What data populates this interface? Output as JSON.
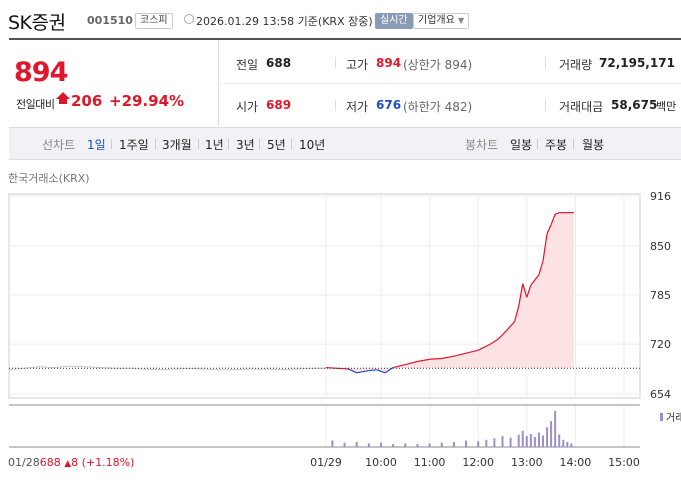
{
  "header": {
    "title": "SK증권",
    "code": "001510",
    "market": "코스피",
    "datetime": "2026.01.29 13:58 기준(KRX 장중)",
    "realtime": "실시간",
    "company_overview": "기업개요"
  },
  "price": {
    "current": "894",
    "change_label": "전일대비",
    "change_value": "206",
    "change_pct": "+29.94%"
  },
  "stats": {
    "prev_close_label": "전일",
    "prev_close": "688",
    "high_label": "고가",
    "high": "894",
    "upper_limit": "(상한가 894)",
    "volume_label": "거래량",
    "volume": "72,195,171",
    "open_label": "시가",
    "open": "689",
    "low_label": "저가",
    "low": "676",
    "lower_limit": "(하한가 482)",
    "amount_label": "거래대금",
    "amount": "58,675",
    "amount_unit": "백만"
  },
  "tabs": {
    "line_label": "선차트",
    "line_periods": [
      "1일",
      "1주일",
      "3개월",
      "1년",
      "3년",
      "5년",
      "10년"
    ],
    "candle_label": "봉차트",
    "candle_periods": [
      "일봉",
      "주봉",
      "월봉"
    ]
  },
  "exchange_label": "한국거래소(KRX)",
  "volume_legend": "거래",
  "prev_day_summary": {
    "date": "01/28",
    "price": "688",
    "change": "8",
    "pct": "(+1.18%)"
  },
  "colors": {
    "up": "#e0162b",
    "down": "#1a4ec9",
    "prev_line": "#c8c8c8",
    "area_fill": "#fde2e4",
    "volume_bar": "#9a8fc6"
  },
  "chart_data": {
    "type": "line",
    "y_ticks": [
      "916",
      "850",
      "785",
      "720",
      "654"
    ],
    "ylim": [
      654,
      916
    ],
    "x_ticks": [
      "01/29",
      "10:00",
      "11:00",
      "12:00",
      "13:00",
      "14:00",
      "15:00"
    ],
    "base_price": 688,
    "prev_day_series": [
      686,
      688,
      690,
      689,
      691,
      690,
      689,
      688,
      688,
      687,
      686,
      687,
      688,
      687,
      686,
      686,
      687,
      687,
      686,
      687,
      688,
      688
    ],
    "today_series": [
      {
        "time": "09:00",
        "price": 689
      },
      {
        "time": "09:20",
        "price": 687
      },
      {
        "time": "09:30",
        "price": 682
      },
      {
        "time": "09:45",
        "price": 685
      },
      {
        "time": "09:55",
        "price": 686
      },
      {
        "time": "10:05",
        "price": 682
      },
      {
        "time": "10:15",
        "price": 689
      },
      {
        "time": "10:30",
        "price": 693
      },
      {
        "time": "10:45",
        "price": 697
      },
      {
        "time": "11:00",
        "price": 700
      },
      {
        "time": "11:15",
        "price": 701
      },
      {
        "time": "11:30",
        "price": 704
      },
      {
        "time": "11:45",
        "price": 708
      },
      {
        "time": "12:00",
        "price": 712
      },
      {
        "time": "12:15",
        "price": 720
      },
      {
        "time": "12:25",
        "price": 727
      },
      {
        "time": "12:35",
        "price": 738
      },
      {
        "time": "12:45",
        "price": 750
      },
      {
        "time": "12:50",
        "price": 770
      },
      {
        "time": "12:55",
        "price": 800
      },
      {
        "time": "13:00",
        "price": 782
      },
      {
        "time": "13:05",
        "price": 798
      },
      {
        "time": "13:10",
        "price": 805
      },
      {
        "time": "13:15",
        "price": 812
      },
      {
        "time": "13:20",
        "price": 830
      },
      {
        "time": "13:25",
        "price": 866
      },
      {
        "time": "13:30",
        "price": 878
      },
      {
        "time": "13:35",
        "price": 892
      },
      {
        "time": "13:40",
        "price": 894
      },
      {
        "time": "13:58",
        "price": 894
      }
    ],
    "volume_bars": [
      {
        "time": "09:00",
        "level": 0.18
      },
      {
        "time": "09:15",
        "level": 0.12
      },
      {
        "time": "09:30",
        "level": 0.14
      },
      {
        "time": "09:45",
        "level": 0.1
      },
      {
        "time": "10:00",
        "level": 0.12
      },
      {
        "time": "10:15",
        "level": 0.08
      },
      {
        "time": "10:30",
        "level": 0.1
      },
      {
        "time": "10:45",
        "level": 0.08
      },
      {
        "time": "11:00",
        "level": 0.1
      },
      {
        "time": "11:15",
        "level": 0.12
      },
      {
        "time": "11:30",
        "level": 0.14
      },
      {
        "time": "11:45",
        "level": 0.18
      },
      {
        "time": "12:00",
        "level": 0.16
      },
      {
        "time": "12:10",
        "level": 0.2
      },
      {
        "time": "12:20",
        "level": 0.24
      },
      {
        "time": "12:30",
        "level": 0.3
      },
      {
        "time": "12:40",
        "level": 0.26
      },
      {
        "time": "12:50",
        "level": 0.34
      },
      {
        "time": "12:55",
        "level": 0.45
      },
      {
        "time": "13:00",
        "level": 0.3
      },
      {
        "time": "13:05",
        "level": 0.36
      },
      {
        "time": "13:10",
        "level": 0.28
      },
      {
        "time": "13:15",
        "level": 0.4
      },
      {
        "time": "13:20",
        "level": 0.32
      },
      {
        "time": "13:25",
        "level": 0.55
      },
      {
        "time": "13:30",
        "level": 0.72
      },
      {
        "time": "13:35",
        "level": 1.0
      },
      {
        "time": "13:40",
        "level": 0.35
      },
      {
        "time": "13:45",
        "level": 0.2
      },
      {
        "time": "13:50",
        "level": 0.14
      },
      {
        "time": "13:55",
        "level": 0.1
      }
    ]
  }
}
